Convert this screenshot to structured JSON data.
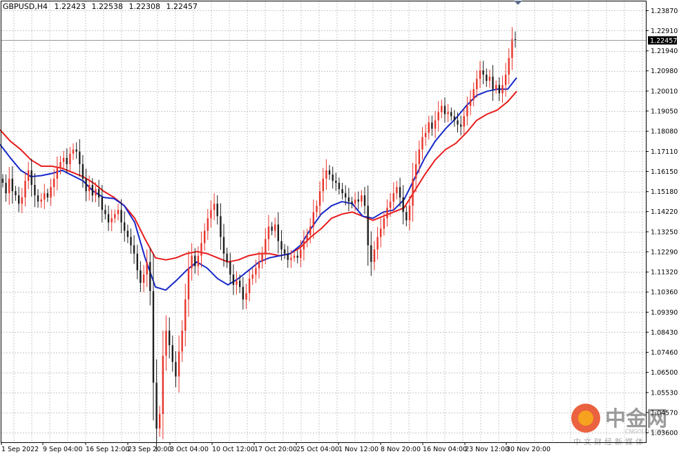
{
  "chart_data": {
    "type": "candlestick",
    "symbol_line": {
      "symbol": "GBPUSD,H4",
      "open": "1.22423",
      "high": "1.22538",
      "low": "1.22308",
      "close": "1.22457"
    },
    "current_price": "1.22457",
    "ylim": [
      1.0314,
      1.2435
    ],
    "yticks": [
      "1.23870",
      "1.22910",
      "1.21940",
      "1.20980",
      "1.20010",
      "1.19050",
      "1.18080",
      "1.17110",
      "1.16150",
      "1.15180",
      "1.14220",
      "1.13250",
      "1.12290",
      "1.11320",
      "1.10360",
      "1.09390",
      "1.08430",
      "1.07460",
      "1.06500",
      "1.05530",
      "1.04570",
      "1.03600"
    ],
    "xticks": [
      "1 Sep 2022",
      "9 Sep 04:00",
      "16 Sep 12:00",
      "23 Sep 20:00",
      "3 Oct 04:00",
      "10 Oct 12:00",
      "17 Oct 20:00",
      "25 Oct 04:00",
      "1 Nov 12:00",
      "8 Nov 20:00",
      "16 Nov 04:00",
      "23 Nov 12:00",
      "30 Nov 20:00"
    ],
    "colors": {
      "up": "#e8342a",
      "down": "#1e1e1e",
      "ma_fast": "#1428c8",
      "ma_slow": "#e81a1a",
      "grid": "#c8c8c8"
    },
    "series": [
      {
        "name": "",
        "kind": "moving-average",
        "color": "#1428c8",
        "x": [
          0,
          15,
          30,
          45,
          60,
          75,
          90,
          105,
          120,
          135,
          150,
          165,
          180,
          195,
          210,
          225,
          240,
          255,
          270,
          285,
          300,
          315,
          330,
          345,
          360,
          375,
          390,
          405,
          420,
          435,
          450,
          465,
          480,
          495,
          510,
          525,
          540,
          555,
          570,
          585,
          600,
          615,
          630,
          645,
          660,
          675,
          690,
          705,
          720,
          735,
          748
        ],
        "values": [
          1.1745,
          1.168,
          1.162,
          1.159,
          1.1595,
          1.1605,
          1.162,
          1.1595,
          1.157,
          1.152,
          1.149,
          1.1485,
          1.145,
          1.137,
          1.12,
          1.106,
          1.1045,
          1.109,
          1.114,
          1.118,
          1.115,
          1.11,
          1.107,
          1.11,
          1.114,
          1.118,
          1.12,
          1.121,
          1.122,
          1.126,
          1.134,
          1.141,
          1.145,
          1.147,
          1.146,
          1.14,
          1.139,
          1.142,
          1.143,
          1.148,
          1.158,
          1.168,
          1.176,
          1.182,
          1.187,
          1.193,
          1.198,
          1.2,
          1.201,
          1.201,
          1.2065
        ]
      },
      {
        "name": "",
        "kind": "moving-average",
        "color": "#e81a1a",
        "x": [
          0,
          15,
          30,
          45,
          60,
          75,
          90,
          105,
          120,
          135,
          150,
          165,
          180,
          195,
          210,
          225,
          240,
          255,
          270,
          285,
          300,
          315,
          330,
          345,
          360,
          375,
          390,
          405,
          420,
          435,
          450,
          465,
          480,
          495,
          510,
          525,
          540,
          555,
          570,
          585,
          600,
          615,
          630,
          645,
          660,
          675,
          690,
          705,
          720,
          735,
          748
        ],
        "values": [
          1.1815,
          1.176,
          1.172,
          1.167,
          1.164,
          1.164,
          1.163,
          1.161,
          1.159,
          1.156,
          1.152,
          1.149,
          1.145,
          1.139,
          1.129,
          1.12,
          1.119,
          1.12,
          1.122,
          1.123,
          1.122,
          1.12,
          1.118,
          1.119,
          1.121,
          1.122,
          1.122,
          1.121,
          1.122,
          1.125,
          1.13,
          1.134,
          1.139,
          1.141,
          1.142,
          1.14,
          1.138,
          1.14,
          1.142,
          1.144,
          1.152,
          1.16,
          1.167,
          1.172,
          1.175,
          1.18,
          1.186,
          1.189,
          1.191,
          1.195,
          1.2
        ]
      }
    ],
    "candles_close": [
      1.156,
      1.151,
      1.158,
      1.152,
      1.15,
      1.146,
      1.149,
      1.157,
      1.162,
      1.155,
      1.15,
      1.147,
      1.148,
      1.151,
      1.149,
      1.154,
      1.158,
      1.163,
      1.166,
      1.168,
      1.165,
      1.17,
      1.172,
      1.171,
      1.165,
      1.158,
      1.152,
      1.155,
      1.15,
      1.153,
      1.149,
      1.143,
      1.141,
      1.137,
      1.139,
      1.141,
      1.143,
      1.137,
      1.133,
      1.13,
      1.126,
      1.122,
      1.114,
      1.108,
      1.112,
      1.118,
      1.104,
      1.06,
      1.038,
      1.045,
      1.073,
      1.085,
      1.078,
      1.07,
      1.063,
      1.075,
      1.085,
      1.1,
      1.115,
      1.121,
      1.116,
      1.121,
      1.127,
      1.133,
      1.139,
      1.143,
      1.146,
      1.14,
      1.13,
      1.122,
      1.118,
      1.112,
      1.107,
      1.109,
      1.106,
      1.1,
      1.103,
      1.11,
      1.112,
      1.115,
      1.118,
      1.122,
      1.129,
      1.135,
      1.133,
      1.136,
      1.128,
      1.124,
      1.122,
      1.119,
      1.12,
      1.121,
      1.12,
      1.124,
      1.128,
      1.131,
      1.135,
      1.142,
      1.145,
      1.152,
      1.158,
      1.162,
      1.16,
      1.157,
      1.156,
      1.153,
      1.151,
      1.149,
      1.147,
      1.146,
      1.148,
      1.147,
      1.15,
      1.145,
      1.126,
      1.118,
      1.124,
      1.13,
      1.134,
      1.139,
      1.144,
      1.147,
      1.151,
      1.154,
      1.149,
      1.142,
      1.138,
      1.145,
      1.158,
      1.165,
      1.172,
      1.178,
      1.18,
      1.185,
      1.182,
      1.186,
      1.19,
      1.193,
      1.189,
      1.19,
      1.188,
      1.186,
      1.184,
      1.183,
      1.188,
      1.193,
      1.196,
      1.201,
      1.206,
      1.21,
      1.208,
      1.205,
      1.207,
      1.201,
      1.203,
      1.199,
      1.203,
      1.208,
      1.216,
      1.225,
      1.2246
    ]
  }
}
